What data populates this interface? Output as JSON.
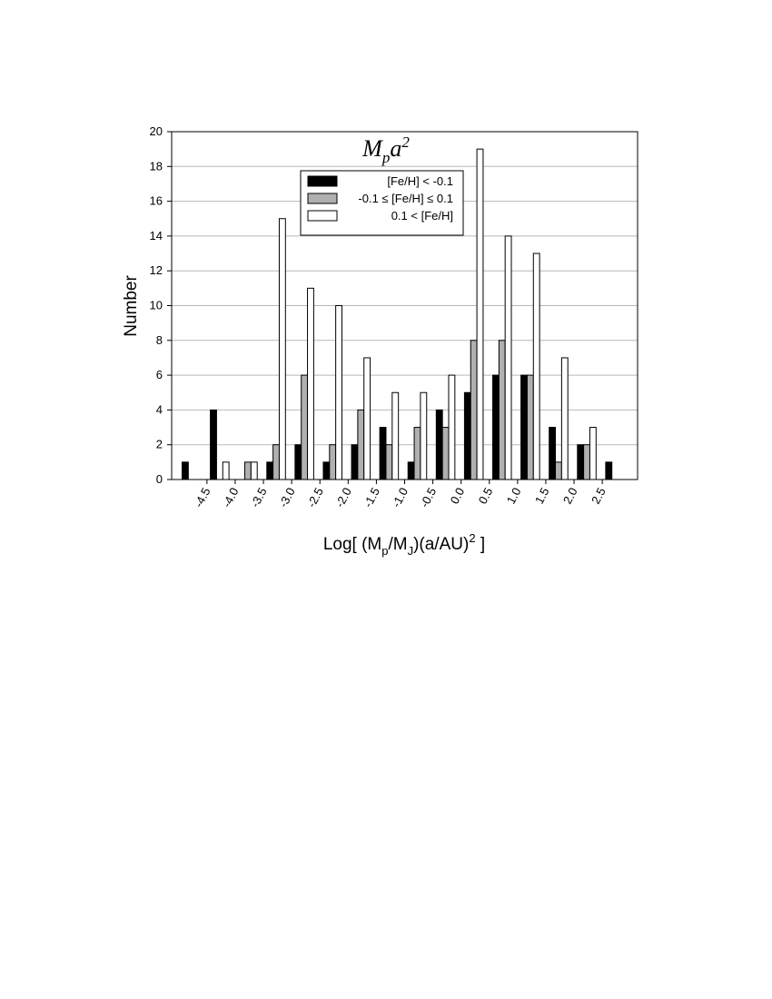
{
  "chart_data": {
    "type": "histogram",
    "title": [
      "M",
      "p",
      "a",
      "2"
    ],
    "x_label": [
      "Log[ (M",
      "p",
      "/M",
      "J",
      ")(a/AU)",
      "2",
      " ]"
    ],
    "y_label": "Number",
    "bins": [
      -5.0,
      -4.5,
      -4.0,
      -3.5,
      -3.0,
      -2.5,
      -2.0,
      -1.5,
      -1.0,
      -0.5,
      0.0,
      0.5,
      1.0,
      1.5,
      2.0,
      2.5,
      3.0
    ],
    "series": [
      {
        "name": "[Fe/H] < -0.1",
        "color": "#000000",
        "values": [
          1,
          4,
          0,
          1,
          2,
          1,
          2,
          3,
          1,
          4,
          5,
          6,
          6,
          3,
          2,
          1
        ]
      },
      {
        "name": "-0.1 ≤ [Fe/H] ≤ 0.1",
        "color": "#b0b0b0",
        "values": [
          0,
          0,
          1,
          2,
          6,
          2,
          4,
          2,
          3,
          3,
          8,
          8,
          6,
          1,
          2,
          0
        ]
      },
      {
        "name": "0.1 < [Fe/H]",
        "color": "#ffffff",
        "values": [
          0,
          1,
          1,
          15,
          11,
          10,
          7,
          5,
          5,
          6,
          19,
          14,
          13,
          7,
          3,
          0
        ]
      }
    ],
    "xlim": [
      -5.125,
      3.125
    ],
    "xticks": [
      {
        "value": -4.5,
        "label": "-4.5"
      },
      {
        "value": -4.0,
        "label": "-4.0"
      },
      {
        "value": -3.5,
        "label": "-3.5"
      },
      {
        "value": -3.0,
        "label": "-3.0"
      },
      {
        "value": -2.5,
        "label": "-2.5"
      },
      {
        "value": -2.0,
        "label": "-2.0"
      },
      {
        "value": -1.5,
        "label": "-1.5"
      },
      {
        "value": -1.0,
        "label": "-1.0"
      },
      {
        "value": -0.5,
        "label": "-0.5"
      },
      {
        "value": 0.0,
        "label": "0.0"
      },
      {
        "value": 0.5,
        "label": "0.5"
      },
      {
        "value": 1.0,
        "label": "1.0"
      },
      {
        "value": 1.5,
        "label": "1.5"
      },
      {
        "value": 2.0,
        "label": "2.0"
      },
      {
        "value": 2.5,
        "label": "2.5"
      }
    ],
    "ylim": [
      0,
      20
    ],
    "yticks": [
      0,
      2,
      4,
      6,
      8,
      10,
      12,
      14,
      16,
      18,
      20
    ],
    "grid": true,
    "legend_position": "top"
  }
}
